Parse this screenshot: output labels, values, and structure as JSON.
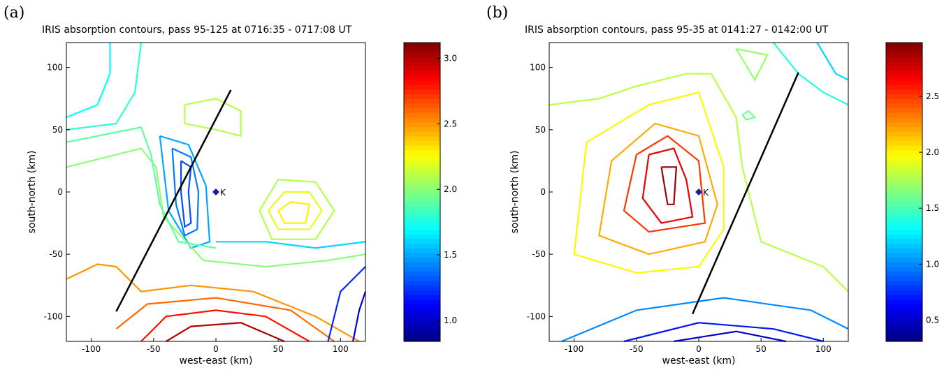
{
  "chart_data": [
    {
      "type": "contour",
      "panel_label": "(a)",
      "title": "IRIS absorption contours, pass 95-125 at 0716:35 - 0717:08 UT",
      "xlabel": "west-east (km)",
      "ylabel": "south-north (km)",
      "xlim": [
        -120,
        120
      ],
      "ylim": [
        -120,
        120
      ],
      "xticks": [
        -100,
        -50,
        0,
        50,
        100
      ],
      "yticks": [
        -100,
        -50,
        0,
        50,
        100
      ],
      "clim": [
        0.84,
        3.12
      ],
      "cticks": [
        {
          "value": 1.0,
          "label": "1.0"
        },
        1.5,
        {
          "value": 2.0,
          "label": "2.0"
        },
        2.5,
        {
          "value": 3.0,
          "label": "3.0"
        }
      ],
      "marker": {
        "label": "K",
        "x": 0,
        "y": 0,
        "color": "#1a1aa0"
      },
      "track": {
        "x": [
          -80,
          12
        ],
        "y": [
          -96,
          82
        ],
        "color": "#000000"
      },
      "contours": [
        {
          "level": 1.3,
          "x": [
            -28,
            -20,
            -22,
            -20,
            -25,
            -28,
            -28
          ],
          "y": [
            25,
            20,
            0,
            -25,
            -28,
            0,
            25
          ]
        },
        {
          "level": 1.4,
          "x": [
            -35,
            -20,
            -14,
            -15,
            -25,
            -32,
            -35
          ],
          "y": [
            35,
            28,
            0,
            -30,
            -35,
            -10,
            35
          ]
        },
        {
          "level": 1.5,
          "x": [
            -45,
            -22,
            -8,
            -5,
            -20,
            -38,
            -45
          ],
          "y": [
            45,
            38,
            5,
            -40,
            -45,
            -15,
            45
          ]
        },
        {
          "level": 2.3,
          "x": [
            50,
            60,
            75,
            72,
            55,
            50
          ],
          "y": [
            -15,
            -8,
            -10,
            -25,
            -25,
            -15
          ]
        },
        {
          "level": 2.2,
          "x": [
            42,
            55,
            75,
            85,
            75,
            50,
            42
          ],
          "y": [
            -15,
            0,
            0,
            -15,
            -30,
            -30,
            -15
          ]
        },
        {
          "level": 2.1,
          "x": [
            35,
            50,
            80,
            95,
            80,
            45,
            35
          ],
          "y": [
            -15,
            10,
            8,
            -15,
            -38,
            -38,
            -15
          ]
        },
        {
          "level": 2.1,
          "x": [
            -25,
            0,
            20,
            20,
            0,
            -25,
            -25
          ],
          "y": [
            70,
            75,
            65,
            45,
            50,
            55,
            70
          ]
        },
        {
          "level": 3.0,
          "x": [
            -40,
            -20,
            20,
            55
          ],
          "y": [
            -120,
            -108,
            -105,
            -120
          ]
        },
        {
          "level": 2.8,
          "x": [
            -60,
            -40,
            0,
            40,
            75
          ],
          "y": [
            -120,
            -100,
            -95,
            -100,
            -120
          ]
        },
        {
          "level": 2.6,
          "x": [
            -80,
            -55,
            0,
            60,
            95
          ],
          "y": [
            -110,
            -90,
            -85,
            -95,
            -120
          ]
        },
        {
          "level": 2.5,
          "x": [
            -120,
            -95,
            -80,
            -60,
            -20,
            30,
            80,
            115
          ],
          "y": [
            -70,
            -58,
            -60,
            -80,
            -75,
            -80,
            -100,
            -120
          ]
        },
        {
          "level": 2.0,
          "x": [
            -120,
            -60,
            -48,
            -42,
            -10,
            40,
            90,
            120
          ],
          "y": [
            20,
            35,
            20,
            -20,
            -55,
            -60,
            -55,
            -50
          ]
        },
        {
          "level": 1.9,
          "x": [
            -120,
            -60,
            -52,
            -45,
            -30,
            0
          ],
          "y": [
            40,
            52,
            30,
            -10,
            -40,
            -45
          ]
        },
        {
          "level": 1.8,
          "x": [
            -120,
            -80,
            -65,
            -60
          ],
          "y": [
            50,
            55,
            80,
            120
          ]
        },
        {
          "level": 1.7,
          "x": [
            -120,
            -95,
            -85,
            -85
          ],
          "y": [
            60,
            70,
            95,
            120
          ]
        },
        {
          "level": 1.6,
          "x": [
            0,
            40,
            80,
            120
          ],
          "y": [
            -40,
            -40,
            -45,
            -40
          ]
        },
        {
          "level": 1.2,
          "x": [
            90,
            100,
            120
          ],
          "y": [
            -120,
            -80,
            -60
          ]
        },
        {
          "level": 1.0,
          "x": [
            110,
            115,
            120
          ],
          "y": [
            -120,
            -95,
            -80
          ]
        }
      ]
    },
    {
      "type": "contour",
      "panel_label": "(b)",
      "title": "IRIS absorption contours, pass 95-35 at 0141:27 - 0142:00 UT",
      "xlabel": "west-east (km)",
      "ylabel": "south-north (km)",
      "xlim": [
        -120,
        120
      ],
      "ylim": [
        -120,
        120
      ],
      "xticks": [
        -100,
        -50,
        0,
        50,
        100
      ],
      "yticks": [
        -100,
        -50,
        0,
        50,
        100
      ],
      "clim": [
        0.31,
        2.98
      ],
      "cticks": [
        0.5,
        {
          "value": 1.0,
          "label": "1.0"
        },
        1.5,
        {
          "value": 2.0,
          "label": "2.0"
        },
        2.5
      ],
      "marker": {
        "label": "K",
        "x": 0,
        "y": 0,
        "color": "#1a1aa0"
      },
      "track": {
        "x": [
          -5,
          80
        ],
        "y": [
          -98,
          96
        ],
        "color": "#000000"
      },
      "contours": [
        {
          "level": 2.9,
          "x": [
            -30,
            -18,
            -20,
            -25,
            -30
          ],
          "y": [
            20,
            20,
            -10,
            -10,
            20
          ]
        },
        {
          "level": 2.7,
          "x": [
            -40,
            -20,
            -10,
            -5,
            -30,
            -45,
            -40
          ],
          "y": [
            30,
            35,
            10,
            -20,
            -25,
            -5,
            30
          ]
        },
        {
          "level": 2.5,
          "x": [
            -50,
            -25,
            0,
            5,
            -40,
            -60,
            -50
          ],
          "y": [
            30,
            45,
            25,
            -25,
            -32,
            -15,
            30
          ]
        },
        {
          "level": 2.2,
          "x": [
            -70,
            -35,
            0,
            15,
            5,
            -40,
            -80,
            -70
          ],
          "y": [
            25,
            55,
            45,
            -10,
            -40,
            -50,
            -35,
            25
          ]
        },
        {
          "level": 2.0,
          "x": [
            -90,
            -40,
            0,
            20,
            20,
            0,
            -50,
            -100,
            -90
          ],
          "y": [
            40,
            70,
            80,
            20,
            -30,
            -60,
            -65,
            -50,
            40
          ]
        },
        {
          "level": 1.8,
          "x": [
            -120,
            -80,
            -50,
            -10,
            10,
            30,
            35,
            50,
            100,
            120
          ],
          "y": [
            70,
            75,
            85,
            95,
            95,
            60,
            20,
            -40,
            -60,
            -80
          ]
        },
        {
          "level": 1.6,
          "x": [
            35,
            40,
            45,
            38,
            35
          ],
          "y": [
            62,
            65,
            60,
            58,
            62
          ]
        },
        {
          "level": 1.7,
          "x": [
            30,
            45,
            55,
            30
          ],
          "y": [
            115,
            90,
            110,
            115
          ]
        },
        {
          "level": 1.4,
          "x": [
            60,
            80,
            100,
            120
          ],
          "y": [
            120,
            95,
            80,
            70
          ]
        },
        {
          "level": 1.2,
          "x": [
            95,
            110,
            120
          ],
          "y": [
            120,
            95,
            90
          ]
        },
        {
          "level": 1.0,
          "x": [
            -110,
            -50,
            20,
            90,
            120
          ],
          "y": [
            -120,
            -95,
            -85,
            -95,
            -110
          ]
        },
        {
          "level": 0.7,
          "x": [
            -60,
            0,
            60,
            100
          ],
          "y": [
            -120,
            -105,
            -110,
            -120
          ]
        },
        {
          "level": 0.5,
          "x": [
            -20,
            30,
            70
          ],
          "y": [
            -120,
            -112,
            -120
          ]
        }
      ]
    }
  ]
}
